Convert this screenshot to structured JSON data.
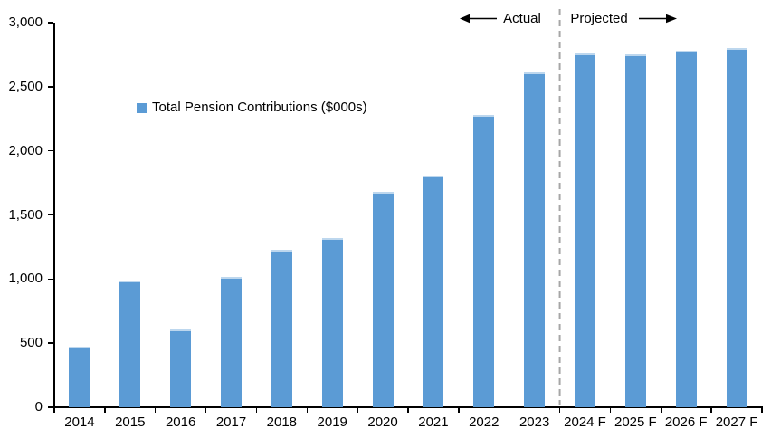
{
  "chart_data": {
    "type": "bar",
    "title": "",
    "xlabel": "",
    "ylabel": "",
    "legend": "Total Pension Contributions ($000s)",
    "legend_position": "upper-left-inside",
    "grid": false,
    "categories": [
      "2014",
      "2015",
      "2016",
      "2017",
      "2018",
      "2019",
      "2020",
      "2021",
      "2022",
      "2023",
      "2024 F",
      "2025 F",
      "2026 F",
      "2027 F"
    ],
    "series": [
      {
        "name": "Total Pension Contributions ($000s)",
        "values": [
          470,
          990,
          610,
          1020,
          1230,
          1320,
          1680,
          1810,
          2280,
          2610,
          2760,
          2750,
          2780,
          2800
        ]
      }
    ],
    "ylim": [
      0,
      3000
    ],
    "ytick_step": 500,
    "ytick_labels": [
      "0",
      "500",
      "1,000",
      "1,500",
      "2,000",
      "2,500",
      "3,000"
    ],
    "annotations": {
      "actual_label": "Actual",
      "projected_label": "Projected",
      "divider_after_category": "2023"
    },
    "colors": {
      "bar_fill": "#5B9BD5",
      "bar_top_edge": "#BDD7EE",
      "axis": "#000000",
      "divider": "#A6A6A6",
      "arrow": "#000000",
      "text": "#000000"
    }
  }
}
